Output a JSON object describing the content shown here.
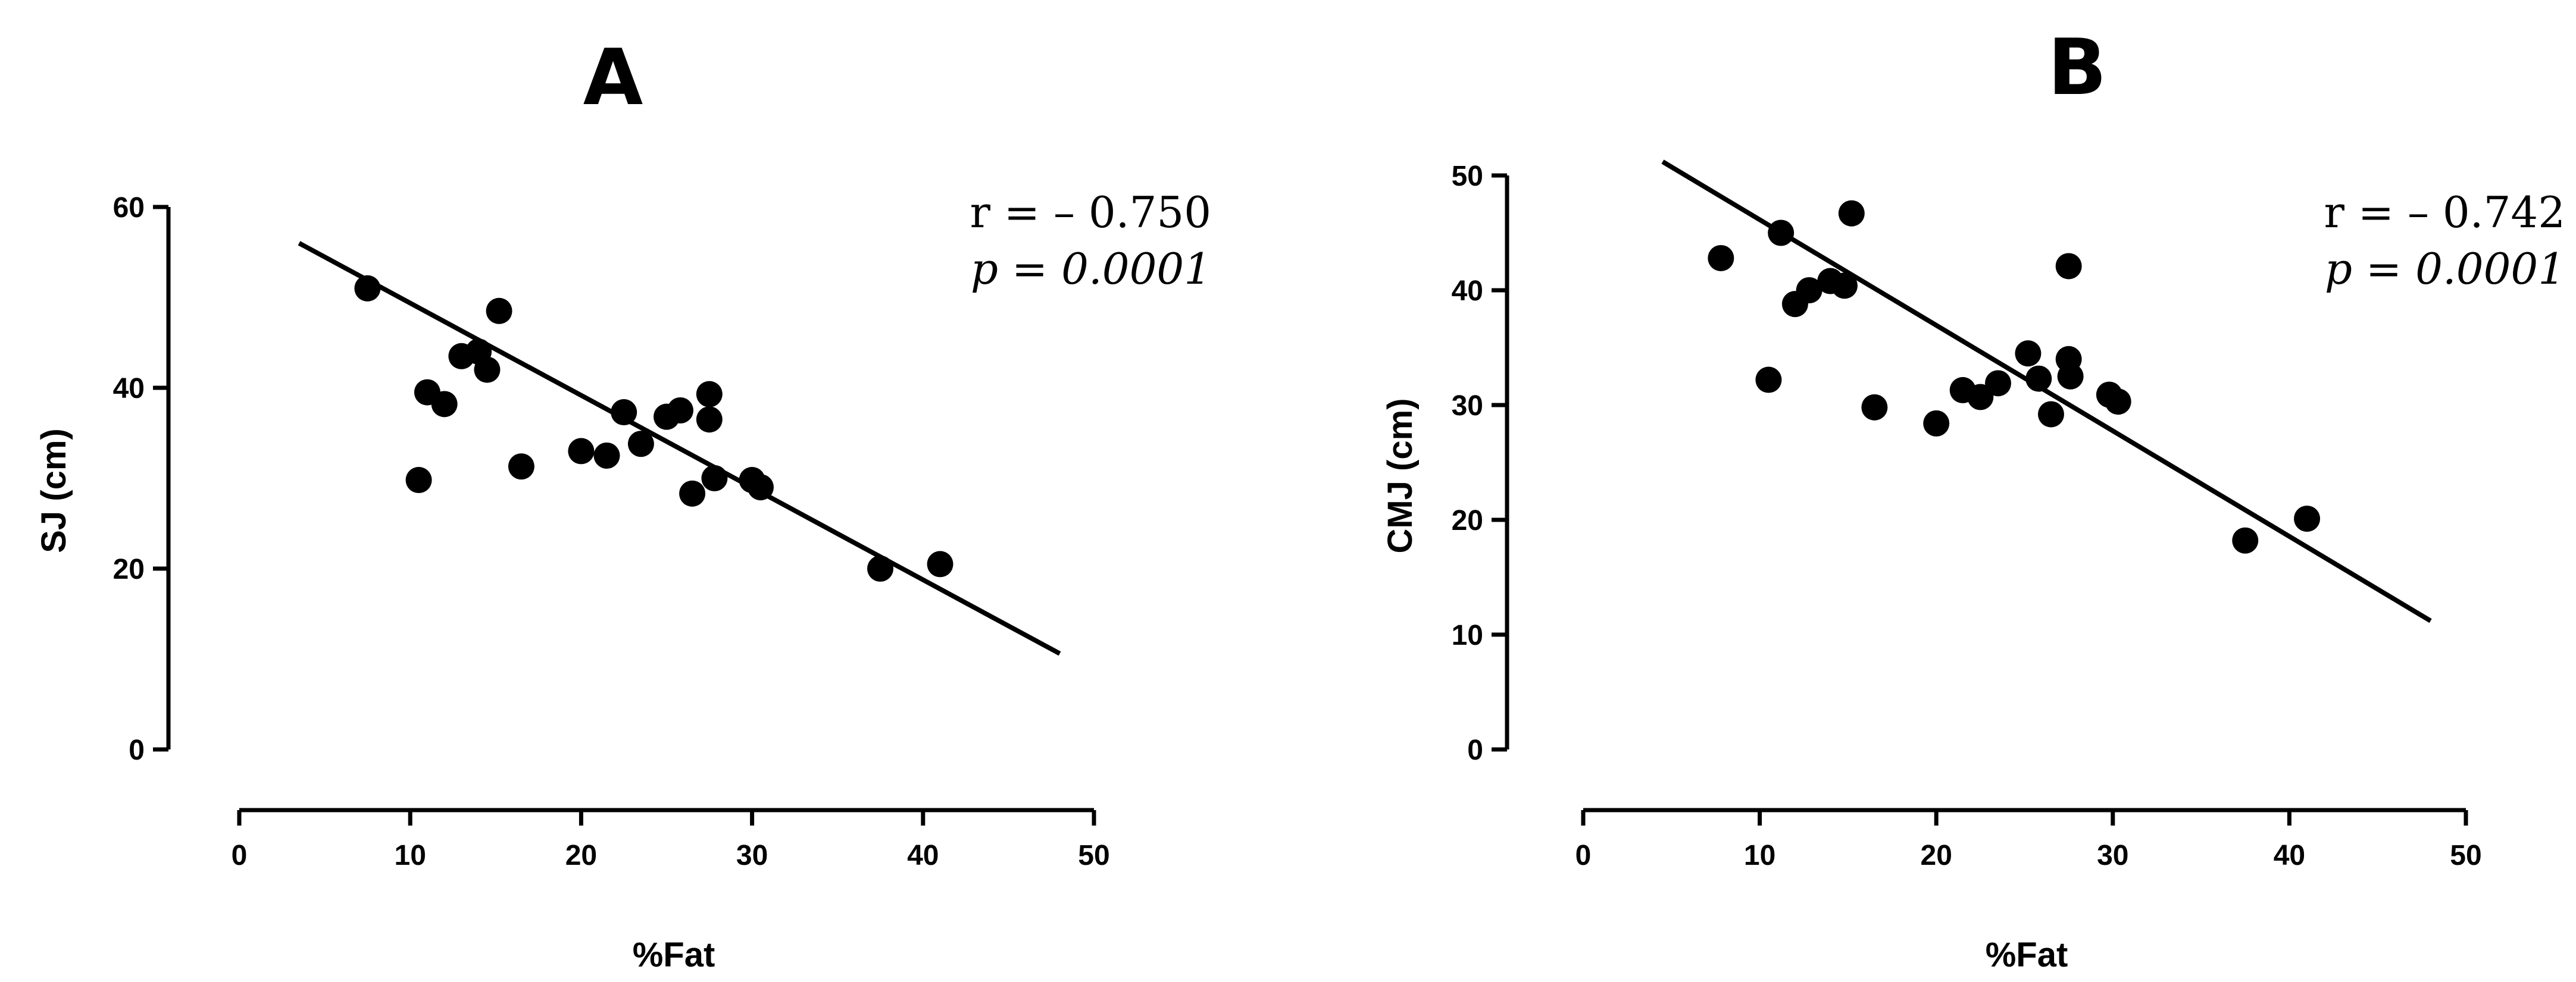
{
  "chart_data": [
    {
      "type": "scatter",
      "title": "A",
      "xlabel": "%Fat",
      "ylabel": "SJ (cm)",
      "xlim": [
        0,
        50
      ],
      "ylim": [
        0,
        60
      ],
      "xticks": [
        "0",
        "10",
        "20",
        "30",
        "40",
        "50"
      ],
      "yticks": [
        "0",
        "20",
        "40",
        "60"
      ],
      "r_text": "r = – 0.750",
      "p_text": "p = 0.0001",
      "trendline": {
        "x": [
          3.5,
          48
        ],
        "y": [
          56.0,
          10.6
        ]
      },
      "points": [
        [
          7.5,
          51.0
        ],
        [
          10.5,
          29.8
        ],
        [
          11.0,
          39.5
        ],
        [
          12.0,
          38.2
        ],
        [
          13.0,
          43.5
        ],
        [
          14.0,
          44.0
        ],
        [
          14.5,
          42.0
        ],
        [
          15.2,
          48.5
        ],
        [
          16.5,
          31.3
        ],
        [
          20.0,
          33.0
        ],
        [
          21.5,
          32.5
        ],
        [
          22.5,
          37.3
        ],
        [
          23.5,
          33.8
        ],
        [
          25.0,
          36.8
        ],
        [
          25.8,
          37.5
        ],
        [
          26.5,
          28.3
        ],
        [
          27.5,
          39.3
        ],
        [
          27.5,
          36.5
        ],
        [
          27.8,
          30.0
        ],
        [
          30.0,
          29.8
        ],
        [
          30.5,
          29.0
        ],
        [
          37.5,
          20.0
        ],
        [
          41.0,
          20.5
        ]
      ]
    },
    {
      "type": "scatter",
      "title": "B",
      "xlabel": "%Fat",
      "ylabel": "CMJ (cm)",
      "xlim": [
        0,
        50
      ],
      "ylim": [
        0,
        50
      ],
      "xticks": [
        "0",
        "10",
        "20",
        "30",
        "40",
        "50"
      ],
      "yticks": [
        "0",
        "10",
        "20",
        "30",
        "40",
        "50"
      ],
      "r_text": "r = – 0.742",
      "p_text": "p = 0.0001",
      "trendline": {
        "x": [
          4.5,
          48
        ],
        "y": [
          51.2,
          11.2
        ]
      },
      "points": [
        [
          7.8,
          42.8
        ],
        [
          10.5,
          32.2
        ],
        [
          11.2,
          45.0
        ],
        [
          12.0,
          38.8
        ],
        [
          12.8,
          40.0
        ],
        [
          14.0,
          40.8
        ],
        [
          14.8,
          40.4
        ],
        [
          15.2,
          46.7
        ],
        [
          16.5,
          29.8
        ],
        [
          20.0,
          28.4
        ],
        [
          21.5,
          31.3
        ],
        [
          22.5,
          30.7
        ],
        [
          23.5,
          31.9
        ],
        [
          25.2,
          34.5
        ],
        [
          25.8,
          32.3
        ],
        [
          26.5,
          29.2
        ],
        [
          27.5,
          42.1
        ],
        [
          27.5,
          34.0
        ],
        [
          27.6,
          32.5
        ],
        [
          29.8,
          30.9
        ],
        [
          30.3,
          30.3
        ],
        [
          37.5,
          18.2
        ],
        [
          41.0,
          20.1
        ]
      ]
    }
  ]
}
